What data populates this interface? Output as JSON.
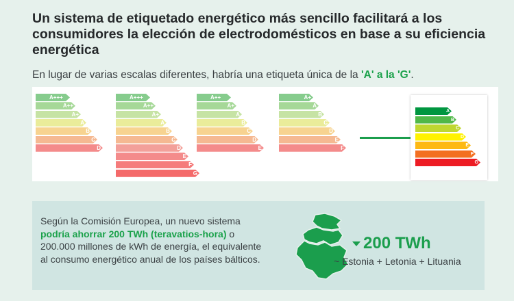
{
  "header": {
    "title": "Un sistema de etiquetado energético más sencillo facilitará a los consumidores la elección de electrodomésticos en base a su eficiencia energética",
    "subtitle_pre": "En lugar de varias escalas diferentes, habría una etiqueta única de la ",
    "subtitle_hl": "'A' a la 'G'",
    "subtitle_post": "."
  },
  "current_labels": [
    [
      "A+++",
      "A++",
      "A+",
      "A",
      "B",
      "C",
      "D"
    ],
    [
      "A+++",
      "A++",
      "A+",
      "A",
      "B",
      "C",
      "D",
      "E",
      "F",
      "G"
    ],
    [
      "A++",
      "A+",
      "A",
      "B",
      "C",
      "D",
      "E"
    ],
    [
      "A+",
      "A",
      "B",
      "C",
      "D",
      "E",
      "F"
    ]
  ],
  "new_label": [
    "A",
    "B",
    "C",
    "D",
    "E",
    "F",
    "G"
  ],
  "colors": {
    "accent": "#1b9e4d",
    "pale_scale": [
      "#86cc8d",
      "#a6d898",
      "#c6e3a4",
      "#eaec9a",
      "#f7d390",
      "#f5b992",
      "#f3a09a",
      "#f48b8b",
      "#f57b7b",
      "#f46a6a"
    ],
    "vivid_scale": [
      "#009640",
      "#50b848",
      "#bfd730",
      "#fff200",
      "#fdb913",
      "#f37021",
      "#ed1c24"
    ]
  },
  "info": {
    "text_pre": "Según la Comisión Europea, un nuevo sistema ",
    "text_hl": "podría ahorrar 200 TWh (teravatios-hora)",
    "text_post": " o 200.000 millones de kWh de energía, el equivalente al consumo energético anual de los países bálticos.",
    "stat": "200 TWh",
    "countries": "~ Estonia + Letonia + Lituania"
  }
}
